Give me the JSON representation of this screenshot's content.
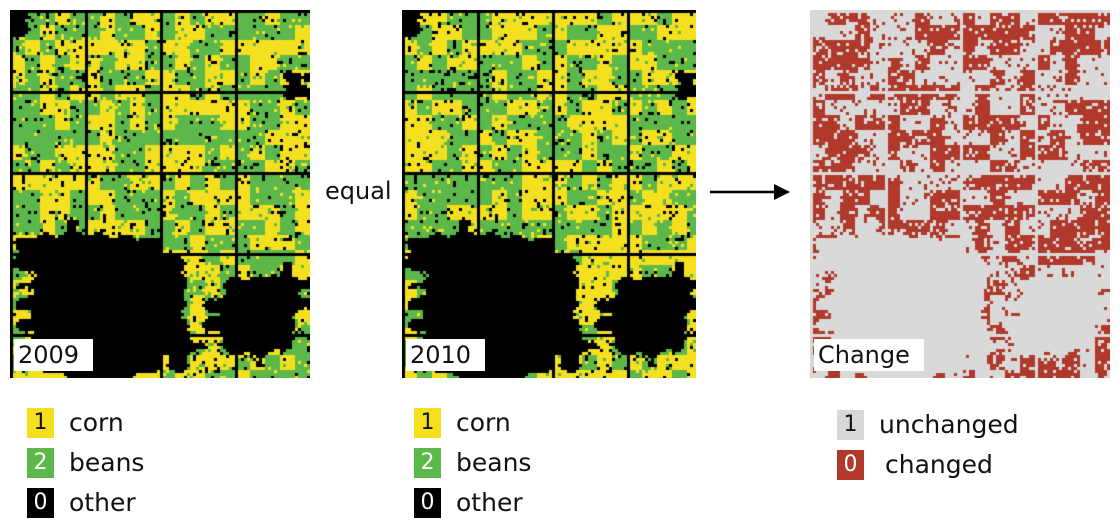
{
  "panels": [
    {
      "id": "p2009",
      "label": "2009"
    },
    {
      "id": "p2010",
      "label": "2010"
    },
    {
      "id": "pchange",
      "label": "Change"
    }
  ],
  "operator": "equal",
  "legends": [
    {
      "items": [
        {
          "code": "1",
          "label": "corn",
          "color": "#f5e01f",
          "code_color": "#111111"
        },
        {
          "code": "2",
          "label": "beans",
          "color": "#5cb84a",
          "code_color": "#ffffff"
        },
        {
          "code": "0",
          "label": "other",
          "color": "#000000",
          "code_color": "#ffffff"
        }
      ]
    },
    {
      "items": [
        {
          "code": "1",
          "label": "corn",
          "color": "#f5e01f",
          "code_color": "#111111"
        },
        {
          "code": "2",
          "label": "beans",
          "color": "#5cb84a",
          "code_color": "#ffffff"
        },
        {
          "code": "0",
          "label": "other",
          "color": "#000000",
          "code_color": "#ffffff"
        }
      ]
    },
    {
      "items": [
        {
          "code": "1",
          "label": "unchanged",
          "color": "#d9d9d9",
          "code_color": "#111111"
        },
        {
          "code": "0",
          "label": "changed",
          "color": "#b0392b",
          "code_color": "#ffffff"
        }
      ]
    }
  ]
}
